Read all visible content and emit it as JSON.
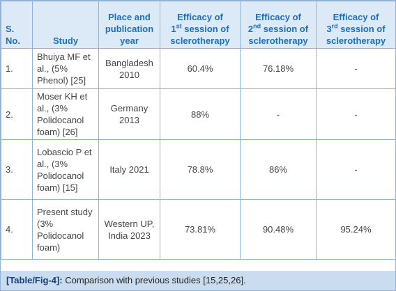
{
  "table": {
    "header": [
      "S. No.",
      "Study",
      "Place and publication year",
      {
        "pre": "Efficacy of",
        "ord": "1",
        "sup": "st",
        "post": "session of sclerotherapy"
      },
      {
        "pre": "Efficacy of",
        "ord": "2",
        "sup": "nd",
        "post": "session of sclerotherapy"
      },
      {
        "pre": "Efficacy of",
        "ord": "3",
        "sup": "rd",
        "post": "session of sclerotherapy"
      }
    ],
    "rows": [
      [
        "1.",
        "Bhuiya MF et al., (5% Phenol) [25]",
        "Bangladesh 2010",
        "60.4%",
        "76.18%",
        "-"
      ],
      [
        "2.",
        "Moser KH et al., (3% Polidocanol foam) [26]",
        "Germany 2013",
        "88%",
        "-",
        "-"
      ],
      [
        "3.",
        "Lobascio P et al., (3% Polidocanol foam) [15]",
        "Italy 2021",
        "78.8%",
        "86%",
        "-"
      ],
      [
        "4.",
        "Present study (3% Polidocanol foam)",
        "Western UP, India 2023",
        "73.81%",
        "90.48%",
        "95.24%"
      ]
    ]
  },
  "caption": {
    "label": "[Table/Fig-4]:",
    "text": "Comparison with previous studies [15,25,26]."
  }
}
